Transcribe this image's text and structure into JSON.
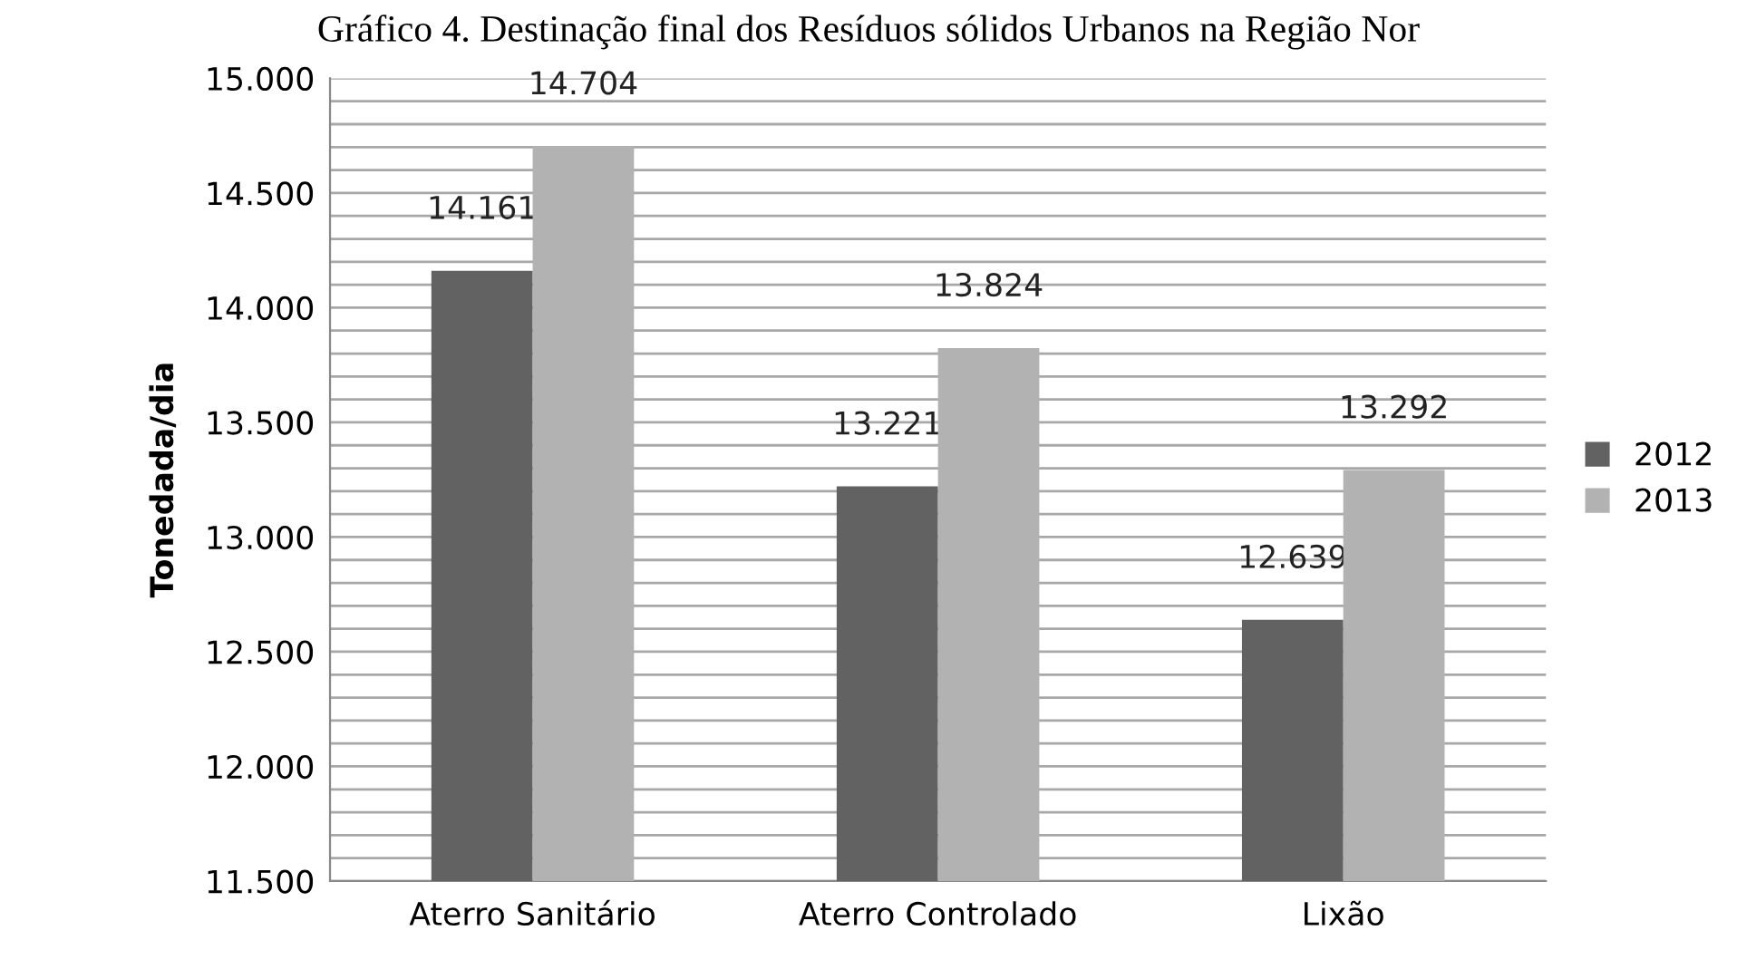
{
  "chart_data": {
    "type": "bar",
    "title": "Gráfico 4. Destinação final dos Resíduos sólidos Urbanos na Região Nor",
    "ylabel": "Tonedada/dia",
    "categories": [
      "Aterro Sanitário",
      "Aterro Controlado",
      "Lixão"
    ],
    "series": [
      {
        "name": "2012",
        "color": "#626262",
        "values": [
          14161,
          13221,
          12639
        ],
        "value_labels": [
          "14.161",
          "13.221",
          "12.639"
        ]
      },
      {
        "name": "2013",
        "color": "#b2b2b2",
        "values": [
          14704,
          13824,
          13292
        ],
        "value_labels": [
          "14.704",
          "13.824",
          "13.292"
        ]
      }
    ],
    "ylim": [
      11500,
      15000
    ],
    "yticks": [
      {
        "value": 11500,
        "label": "11.500"
      },
      {
        "value": 11600,
        "label": null
      },
      {
        "value": 11700,
        "label": null
      },
      {
        "value": 11800,
        "label": null
      },
      {
        "value": 11900,
        "label": null
      },
      {
        "value": 12000,
        "label": "12.000"
      },
      {
        "value": 12100,
        "label": null
      },
      {
        "value": 12200,
        "label": null
      },
      {
        "value": 12300,
        "label": null
      },
      {
        "value": 12400,
        "label": null
      },
      {
        "value": 12500,
        "label": "12.500"
      },
      {
        "value": 12600,
        "label": null
      },
      {
        "value": 12700,
        "label": null
      },
      {
        "value": 12800,
        "label": null
      },
      {
        "value": 12900,
        "label": null
      },
      {
        "value": 13000,
        "label": "13.000"
      },
      {
        "value": 13100,
        "label": null
      },
      {
        "value": 13200,
        "label": null
      },
      {
        "value": 13300,
        "label": null
      },
      {
        "value": 13400,
        "label": null
      },
      {
        "value": 13500,
        "label": "13.500"
      },
      {
        "value": 13600,
        "label": null
      },
      {
        "value": 13700,
        "label": null
      },
      {
        "value": 13800,
        "label": null
      },
      {
        "value": 13900,
        "label": null
      },
      {
        "value": 14000,
        "label": "14.000"
      },
      {
        "value": 14100,
        "label": null
      },
      {
        "value": 14200,
        "label": null
      },
      {
        "value": 14300,
        "label": null
      },
      {
        "value": 14400,
        "label": null
      },
      {
        "value": 14500,
        "label": "14.500"
      },
      {
        "value": 14600,
        "label": null
      },
      {
        "value": 14700,
        "label": null
      },
      {
        "value": 14800,
        "label": null
      },
      {
        "value": 14900,
        "label": null
      },
      {
        "value": 15000,
        "label": "15.000"
      }
    ],
    "grid": "y",
    "legend": "right"
  }
}
